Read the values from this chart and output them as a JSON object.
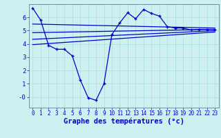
{
  "xlabel": "Graphe des températures (°c)",
  "background_color": "#cff0f0",
  "line_color": "#0000cc",
  "x_ticks": [
    0,
    1,
    2,
    3,
    4,
    5,
    6,
    7,
    8,
    9,
    10,
    11,
    12,
    13,
    14,
    15,
    16,
    17,
    18,
    19,
    20,
    21,
    22,
    23
  ],
  "ylim": [
    -0.8,
    7.0
  ],
  "yticks": [
    0,
    1,
    2,
    3,
    4,
    5,
    6
  ],
  "ytick_labels": [
    "-0",
    "1",
    "2",
    "3",
    "4",
    "5",
    "6"
  ],
  "curve1_x": [
    0,
    1,
    2,
    3,
    4,
    5,
    6,
    7,
    8,
    9,
    10,
    11,
    12,
    13,
    14,
    15,
    16,
    17,
    18,
    19,
    20,
    21,
    22,
    23
  ],
  "curve1_y": [
    6.7,
    5.8,
    3.9,
    3.6,
    3.6,
    3.1,
    1.3,
    -0.05,
    -0.25,
    1.0,
    4.7,
    5.6,
    6.35,
    5.9,
    6.6,
    6.3,
    6.1,
    5.3,
    5.2,
    5.2,
    5.05,
    5.1,
    5.1,
    5.1
  ],
  "line2_x": [
    0,
    23
  ],
  "line2_y": [
    5.5,
    5.2
  ],
  "line3_x": [
    0,
    23
  ],
  "line3_y": [
    4.85,
    5.1
  ],
  "line4_x": [
    0,
    23
  ],
  "line4_y": [
    4.35,
    5.0
  ],
  "line5_x": [
    0,
    23
  ],
  "line5_y": [
    3.95,
    4.9
  ],
  "grid_color": "#a8dede",
  "spine_color": "#7090a0",
  "xlabel_fontsize": 7.5,
  "tick_fontsize_x": 5.5,
  "tick_fontsize_y": 6.5
}
